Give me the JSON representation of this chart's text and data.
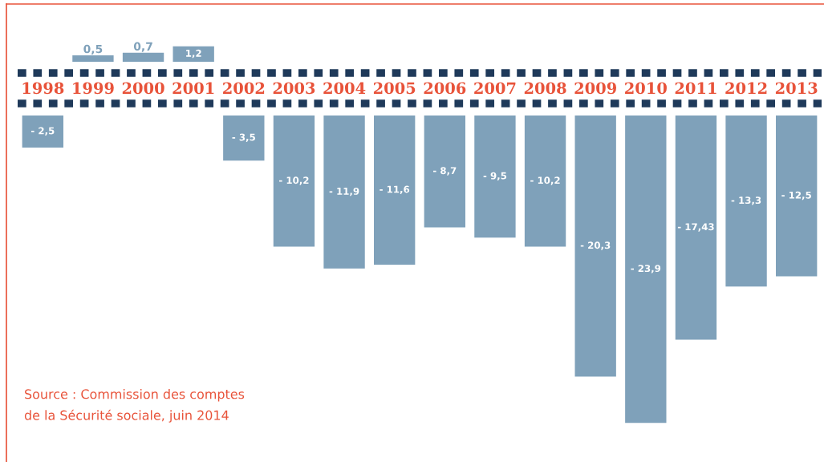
{
  "chart_data": [
    {
      "type": "bar",
      "tick_labels": "x",
      "categories": [
        "1998",
        "1999",
        "2000",
        "2001",
        "2002",
        "2003",
        "2004",
        "2005",
        "2006",
        "2007",
        "2008",
        "2009",
        "2010",
        "2011",
        "2012",
        "2013"
      ],
      "values": [
        null,
        0.5,
        0.7,
        1.2,
        null,
        null,
        null,
        null,
        null,
        null,
        null,
        null,
        null,
        null,
        null,
        null
      ],
      "value_labels": [
        null,
        "0,5",
        "0,7",
        "1,2",
        null,
        null,
        null,
        null,
        null,
        null,
        null,
        null,
        null,
        null,
        null,
        null
      ],
      "color": "#7fa1ba"
    },
    {
      "type": "bar",
      "tick_labels": false,
      "categories": [
        "1998",
        "1999",
        "2000",
        "2001",
        "2002",
        "2003",
        "2004",
        "2005",
        "2006",
        "2007",
        "2008",
        "2009",
        "2010",
        "2011",
        "2012",
        "2013"
      ],
      "values": [
        -2.5,
        null,
        null,
        null,
        -3.5,
        -10.2,
        -11.9,
        -11.6,
        -8.7,
        -9.5,
        -10.2,
        -20.3,
        -23.9,
        -17.43,
        -13.3,
        -12.5
      ],
      "value_labels": [
        "- 2,5",
        null,
        null,
        null,
        "- 3,5",
        "- 10,2",
        "- 11,9",
        "- 11,6",
        "- 8,7",
        "- 9,5",
        "- 10,2",
        "- 20,3",
        "- 23,9",
        "- 17,43",
        "- 13,3",
        "- 12,5"
      ],
      "color": "#7fa1ba",
      "annotations": [
        "Source : Commission des comptes\nde la Sécurité sociale, juin 2014"
      ]
    }
  ]
}
